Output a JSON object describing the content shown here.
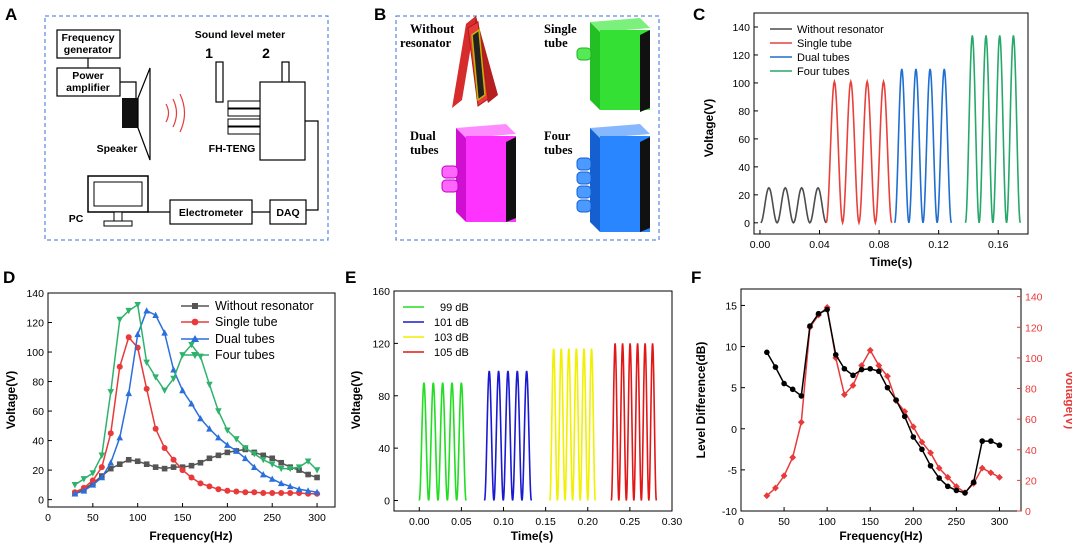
{
  "panels": {
    "A": "A",
    "B": "B",
    "C": "C",
    "D": "D",
    "E": "E",
    "F": "F"
  },
  "schematic": {
    "frequency_generator": [
      "Frequency",
      "generator"
    ],
    "power_amplifier": [
      "Power",
      "amplifier"
    ],
    "sound_level_meter": "Sound level meter",
    "pos1": "1",
    "pos2": "2",
    "speaker": "Speaker",
    "fh_teng": "FH-TENG",
    "pc": "PC",
    "electrometer": "Electrometer",
    "daq": "DAQ"
  },
  "configs": {
    "without": [
      "Without",
      "resonator"
    ],
    "single": [
      "Single",
      "tube"
    ],
    "dual": [
      "Dual",
      "tubes"
    ],
    "four": [
      "Four",
      "tubes"
    ]
  },
  "colors": {
    "gray": "#4d4d4d",
    "red": "#e8413b",
    "blue": "#1f6fd1",
    "green": "#27a86b",
    "d_gray": "#555555",
    "d_red": "#e83a3a",
    "d_blue": "#2a6fdb",
    "d_green": "#2fb36c",
    "e_green": "#22dd22",
    "e_blue": "#1a1ad0",
    "e_yellow": "#f0f000",
    "e_red": "#e01818",
    "f_black": "#000000",
    "f_red": "#e83a3a"
  },
  "chart_data": [
    {
      "panel": "C",
      "type": "line",
      "xlabel": "Time(s)",
      "ylabel": "Voltage(V)",
      "xlim": [
        -0.004,
        0.18
      ],
      "ylim": [
        -8,
        150
      ],
      "xticks": [
        "0.00",
        "0.04",
        "0.08",
        "0.12",
        "0.16"
      ],
      "xtick_values": [
        0,
        0.04,
        0.08,
        0.12,
        0.16
      ],
      "yticks": [
        "0",
        "20",
        "40",
        "60",
        "80",
        "100",
        "120",
        "140"
      ],
      "ytick_values": [
        0,
        20,
        40,
        60,
        80,
        100,
        120,
        140
      ],
      "series": [
        {
          "name": "Without resonator",
          "color_key": "gray",
          "start": 0.0005,
          "period": 0.011,
          "cycles": 4,
          "amplitude": 25
        },
        {
          "name": "Single tube",
          "color_key": "red",
          "start": 0.0445,
          "period": 0.011,
          "cycles": 4,
          "amplitude": 101
        },
        {
          "name": "Dual tubes",
          "color_key": "blue",
          "start": 0.0905,
          "period": 0.0095,
          "cycles": 4,
          "amplitude": 110
        },
        {
          "name": "Four tubes",
          "color_key": "green",
          "start": 0.138,
          "period": 0.0092,
          "cycles": 4,
          "amplitude": 134
        }
      ]
    },
    {
      "panel": "D",
      "type": "line",
      "xlabel": "Frequency(Hz)",
      "ylabel": "Voltage(V)",
      "xlim": [
        0,
        320
      ],
      "ylim": [
        -5,
        140
      ],
      "xticks": [
        "0",
        "50",
        "100",
        "150",
        "200",
        "250",
        "300"
      ],
      "xtick_values": [
        0,
        50,
        100,
        150,
        200,
        250,
        300
      ],
      "yticks": [
        "0",
        "20",
        "40",
        "60",
        "80",
        "100",
        "120",
        "140"
      ],
      "ytick_values": [
        0,
        20,
        40,
        60,
        80,
        100,
        120,
        140
      ],
      "x": [
        30,
        40,
        50,
        60,
        70,
        80,
        90,
        100,
        110,
        120,
        130,
        140,
        150,
        160,
        170,
        180,
        190,
        200,
        210,
        220,
        230,
        240,
        250,
        260,
        270,
        280,
        290,
        300
      ],
      "series": [
        {
          "name": "Without resonator",
          "color_key": "d_gray",
          "marker": "square",
          "values": [
            4,
            7,
            11,
            16,
            21,
            24,
            27,
            26,
            24,
            22,
            21,
            22,
            22,
            23,
            25,
            28,
            30,
            32,
            33,
            34,
            32,
            30,
            28,
            25,
            22,
            20,
            17,
            15
          ]
        },
        {
          "name": "Single tube",
          "color_key": "d_red",
          "marker": "circle",
          "values": [
            5,
            8,
            13,
            22,
            45,
            90,
            110,
            103,
            75,
            48,
            35,
            27,
            20,
            15,
            11,
            9,
            7,
            6,
            5.5,
            5,
            5,
            4.5,
            4.5,
            4.5,
            4.5,
            4.5,
            4,
            4
          ]
        },
        {
          "name": "Dual tubes",
          "color_key": "d_blue",
          "marker": "triangle",
          "values": [
            4,
            6,
            10,
            15,
            25,
            42,
            72,
            112,
            128,
            125,
            113,
            88,
            74,
            65,
            55,
            48,
            42,
            37,
            33,
            28,
            22,
            17,
            14,
            11,
            9,
            7,
            6,
            5
          ]
        },
        {
          "name": "Four tubes",
          "color_key": "d_green",
          "marker": "triangle-down",
          "values": [
            10,
            14,
            18,
            30,
            73,
            122,
            128,
            132,
            93,
            83,
            74,
            82,
            98,
            105,
            97,
            78,
            60,
            47,
            41,
            35,
            31,
            27,
            24,
            21,
            21,
            22,
            26,
            20
          ]
        }
      ]
    },
    {
      "panel": "E",
      "type": "line",
      "xlabel": "Time(s)",
      "ylabel": "Voltage(V)",
      "xlim": [
        -0.03,
        0.3
      ],
      "ylim": [
        -8,
        160
      ],
      "xticks": [
        "0.00",
        "0.05",
        "0.10",
        "0.15",
        "0.20",
        "0.25",
        "0.30"
      ],
      "xtick_values": [
        0,
        0.05,
        0.1,
        0.15,
        0.2,
        0.25,
        0.3
      ],
      "yticks": [
        "0",
        "40",
        "80",
        "120",
        "160"
      ],
      "ytick_values": [
        0,
        40,
        80,
        120,
        160
      ],
      "series": [
        {
          "name": "99 dB",
          "color_key": "e_green",
          "start": 0.0,
          "period": 0.0111,
          "cycles": 5,
          "amplitude": 90
        },
        {
          "name": "101 dB",
          "color_key": "e_blue",
          "start": 0.0775,
          "period": 0.0111,
          "cycles": 5,
          "amplitude": 99
        },
        {
          "name": "103 dB",
          "color_key": "e_yellow",
          "start": 0.155,
          "period": 0.009,
          "cycles": 6,
          "amplitude": 116
        },
        {
          "name": "105 dB",
          "color_key": "e_red",
          "start": 0.228,
          "period": 0.0089,
          "cycles": 6,
          "amplitude": 120
        }
      ]
    },
    {
      "panel": "F",
      "type": "line",
      "xlabel": "Frequency(Hz)",
      "ylabel_left": "Level Difference(dB)",
      "ylabel_right": "Voltage(V)",
      "xlim": [
        0,
        325
      ],
      "ylim_left": [
        -10,
        17
      ],
      "ylim_right": [
        0,
        145
      ],
      "xticks": [
        "0",
        "50",
        "100",
        "150",
        "200",
        "250",
        "300"
      ],
      "xtick_values": [
        0,
        50,
        100,
        150,
        200,
        250,
        300
      ],
      "yticks_left": [
        "-10",
        "-5",
        "0",
        "5",
        "10",
        "15"
      ],
      "ytick_values_left": [
        -10,
        -5,
        0,
        5,
        10,
        15
      ],
      "yticks_right": [
        "0",
        "20",
        "40",
        "60",
        "80",
        "100",
        "120",
        "140"
      ],
      "ytick_values_right": [
        0,
        20,
        40,
        60,
        80,
        100,
        120,
        140
      ],
      "left_series": {
        "name": "Level Difference",
        "color_key": "f_black",
        "x": [
          30,
          40,
          50,
          60,
          70,
          80,
          90,
          100,
          110,
          120,
          130,
          140,
          150,
          160,
          170,
          180,
          190,
          200,
          210,
          220,
          230,
          240,
          250,
          260,
          270,
          280,
          290,
          300
        ],
        "values": [
          9.3,
          7.5,
          5.5,
          4.8,
          4.0,
          12.5,
          14.0,
          14.5,
          9.0,
          7.3,
          6.5,
          7.2,
          7.3,
          7.0,
          5.0,
          3.5,
          1.5,
          -1.0,
          -2.5,
          -4.5,
          -6.0,
          -7.0,
          -7.5,
          -7.8,
          -6.5,
          -1.5,
          -1.5,
          -2.0
        ]
      },
      "right_series": {
        "name": "Voltage",
        "color_key": "f_red",
        "x": [
          30,
          40,
          50,
          60,
          70,
          80,
          90,
          100,
          110,
          120,
          130,
          140,
          150,
          160,
          170,
          180,
          190,
          200,
          210,
          220,
          230,
          240,
          250,
          260,
          270,
          280,
          290,
          300
        ],
        "values": [
          10,
          15,
          23,
          35,
          58,
          120,
          128,
          133,
          100,
          76,
          82,
          95,
          105,
          95,
          88,
          72,
          65,
          55,
          45,
          38,
          28,
          22,
          16,
          12,
          18,
          28,
          25,
          22
        ]
      }
    }
  ]
}
